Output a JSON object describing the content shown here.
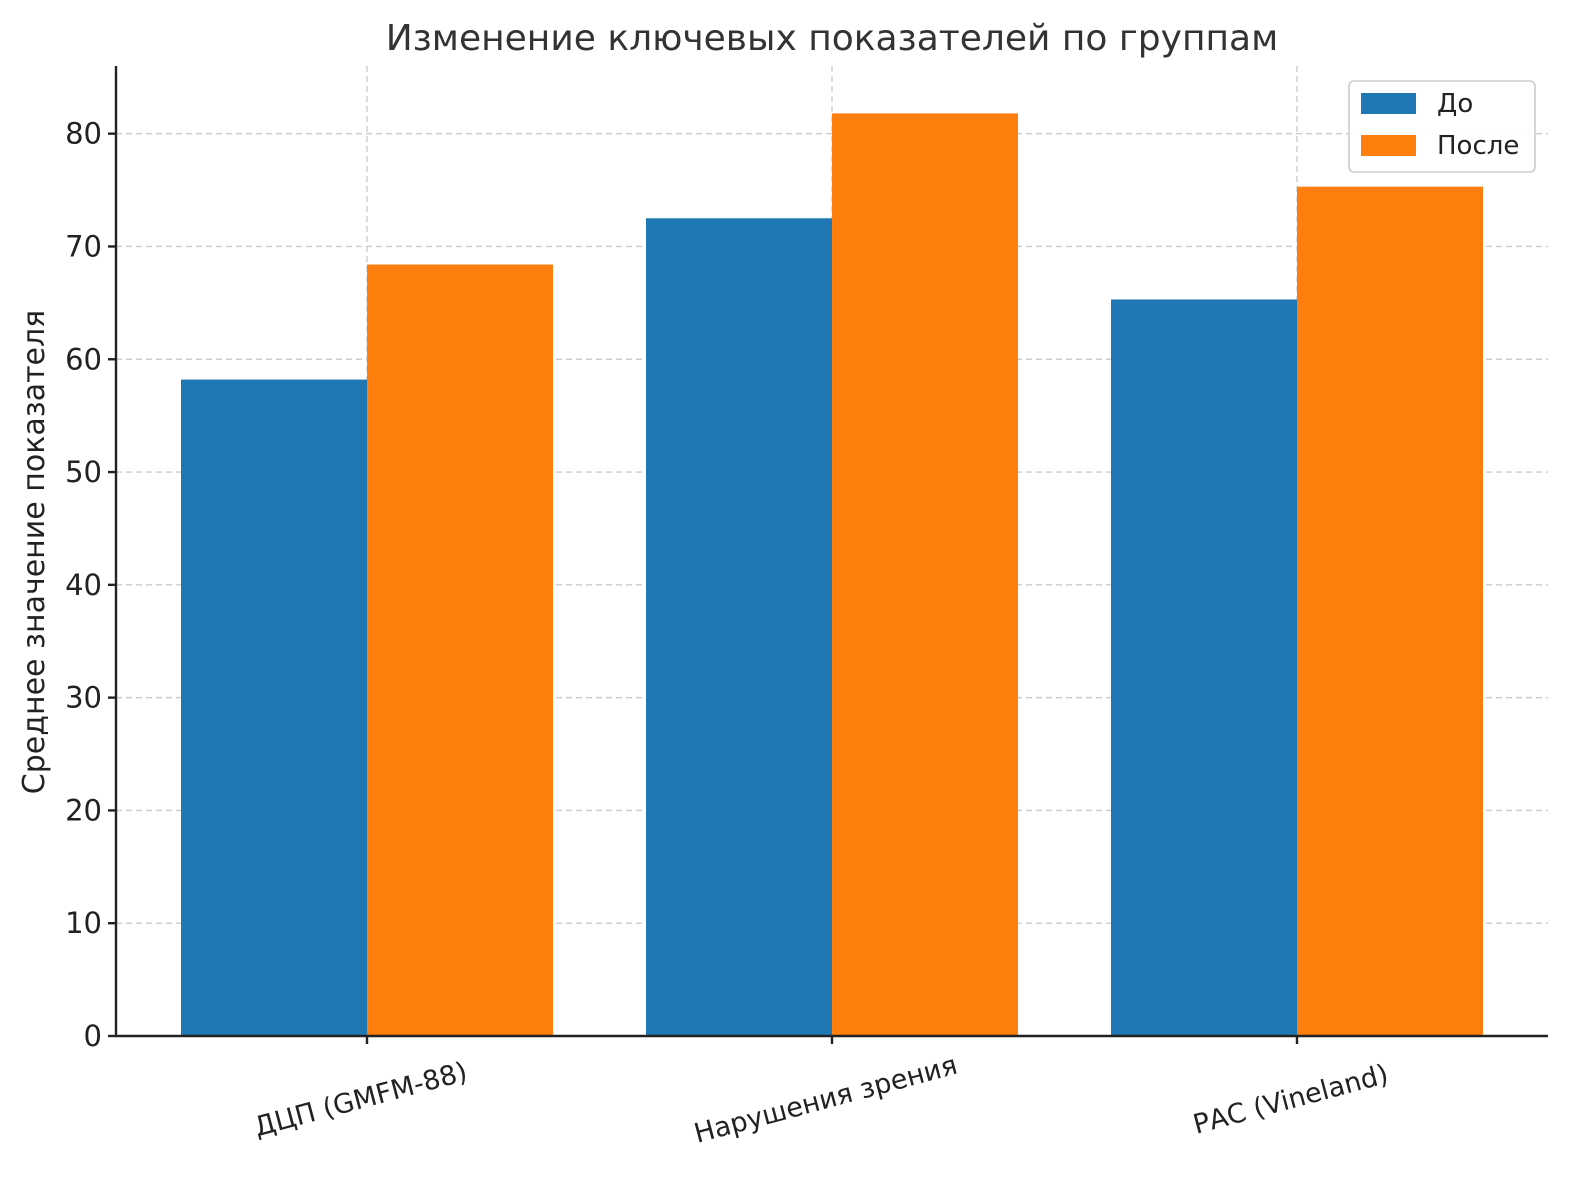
{
  "chart_data": {
    "type": "bar",
    "title": "Изменение ключевых показателей по группам",
    "xlabel": "",
    "ylabel": "Среднее значение показателя",
    "categories": [
      "ДЦП (GMFM-88)",
      "Нарушения зрения",
      "РАС (Vineland)"
    ],
    "series": [
      {
        "name": "До",
        "values": [
          58.2,
          72.5,
          65.3
        ],
        "color": "#1f77b4"
      },
      {
        "name": "После",
        "values": [
          68.4,
          81.8,
          75.3
        ],
        "color": "#ff7f0e"
      }
    ],
    "ylim": [
      0,
      86
    ],
    "yticks": [
      0,
      10,
      20,
      30,
      40,
      50,
      60,
      70,
      80
    ],
    "grid": true,
    "legend_position": "top-right"
  }
}
